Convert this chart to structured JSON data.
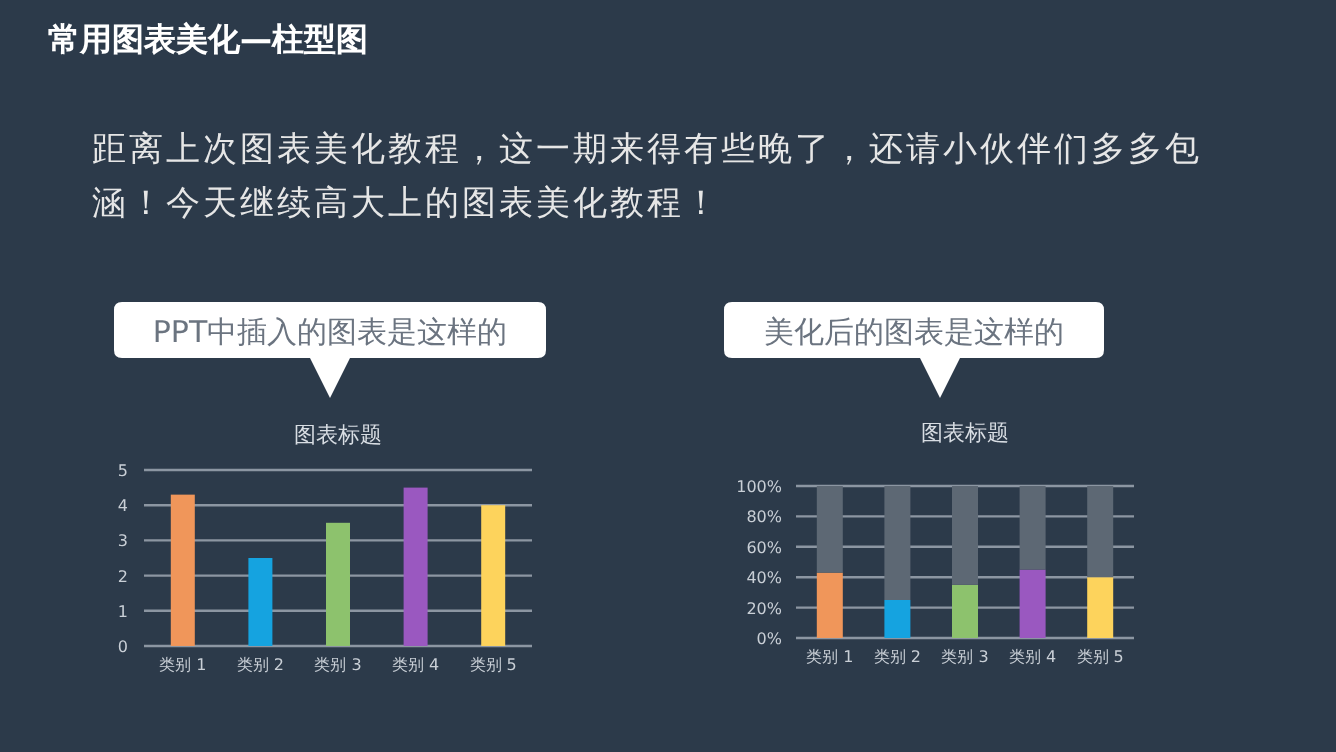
{
  "chart_data": [
    {
      "type": "bar",
      "title": "图表标题",
      "annotations": [
        "常用图表美化—柱型图",
        "距离上次图表美化教程，这一期来得有些晚了，还请小伙伴们多多包涵！今天继续高大上的图表美化教程！",
        "PPT中插入的图表是这样的"
      ],
      "categories": [
        "类别 1",
        "类别 2",
        "类别 3",
        "类别 4",
        "类别 5"
      ],
      "values": [
        4.3,
        2.5,
        3.5,
        4.5,
        4.0
      ],
      "colors": [
        "#f0965a",
        "#15a3e0",
        "#8dc26d",
        "#9a58c0",
        "#fdd35c"
      ],
      "ylim": [
        0,
        5
      ],
      "yticks": [
        0,
        1,
        2,
        3,
        4,
        5
      ],
      "grid": "y"
    },
    {
      "type": "bar",
      "title": "图表标题",
      "annotations": [
        "美化后的图表是这样的"
      ],
      "stacked": true,
      "categories": [
        "类别 1",
        "类别 2",
        "类别 3",
        "类别 4",
        "类别 5"
      ],
      "series": [
        {
          "values": [
            43,
            25,
            35,
            45,
            40
          ],
          "colors": [
            "#f0965a",
            "#15a3e0",
            "#8dc26d",
            "#9a58c0",
            "#fdd35c"
          ]
        },
        {
          "values": [
            57,
            75,
            65,
            55,
            60
          ],
          "color": "#5d6874"
        }
      ],
      "ylim": [
        0,
        100
      ],
      "yticks": [
        {
          "value": 0,
          "label": "0%"
        },
        {
          "value": 20,
          "label": "20%"
        },
        {
          "value": 40,
          "label": "40%"
        },
        {
          "value": 60,
          "label": "60%"
        },
        {
          "value": 80,
          "label": "80%"
        },
        {
          "value": 100,
          "label": "100%"
        }
      ],
      "grid": "y"
    }
  ]
}
